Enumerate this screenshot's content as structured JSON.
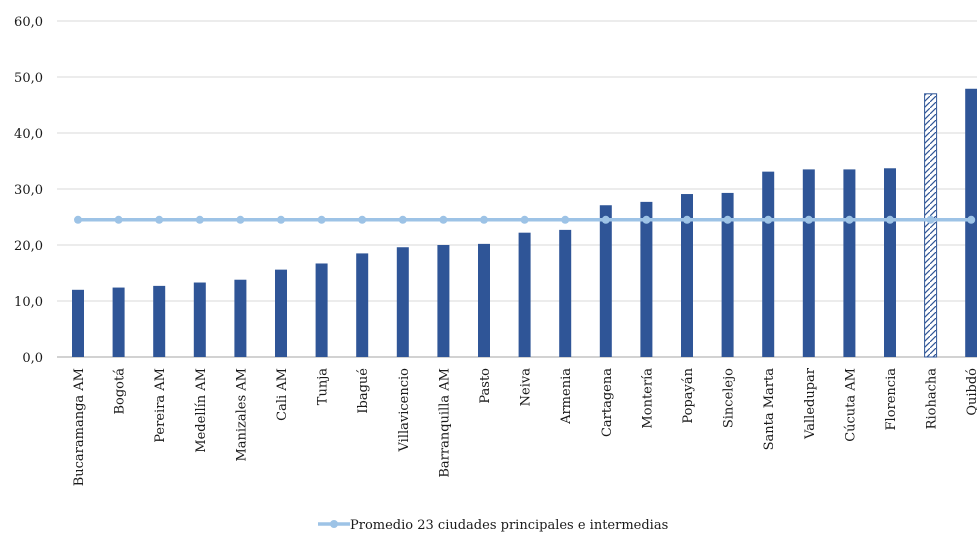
{
  "chart_data": {
    "type": "bar",
    "categories": [
      "Bucaramanga AM",
      "Bogotá",
      "Pereira AM",
      "Medellín AM",
      "Manizales AM",
      "Cali AM",
      "Tunja",
      "Ibagué",
      "Villavicencio",
      "Barranquilla AM",
      "Pasto",
      "Neiva",
      "Armenia",
      "Cartagena",
      "Montería",
      "Popayán",
      "Sincelejo",
      "Santa Marta",
      "Valledupar",
      "Cúcuta AM",
      "Florencia",
      "Riohacha",
      "Quibdó"
    ],
    "values": [
      12.0,
      12.4,
      12.7,
      13.3,
      13.8,
      15.6,
      16.7,
      18.5,
      19.6,
      20.0,
      20.2,
      22.2,
      22.7,
      27.1,
      27.7,
      29.1,
      29.3,
      33.1,
      33.5,
      33.5,
      33.7,
      47.0,
      47.9
    ],
    "highlighted_category": "Riohacha",
    "bar_color": "#2f5597",
    "highlight_pattern": "hatched",
    "line_series": {
      "name": "Promedio 23 ciudades principales e intermedias",
      "value": 24.5,
      "color": "#9dc3e6"
    },
    "ylim": [
      0,
      60
    ],
    "yticks": [
      "0,0",
      "10,0",
      "20,0",
      "30,0",
      "40,0",
      "50,0",
      "60,0"
    ],
    "ytick_values": [
      0,
      10,
      20,
      30,
      40,
      50,
      60
    ],
    "grid": true,
    "legend_placement": "bottom-center",
    "title": "",
    "xlabel": "",
    "ylabel": ""
  }
}
